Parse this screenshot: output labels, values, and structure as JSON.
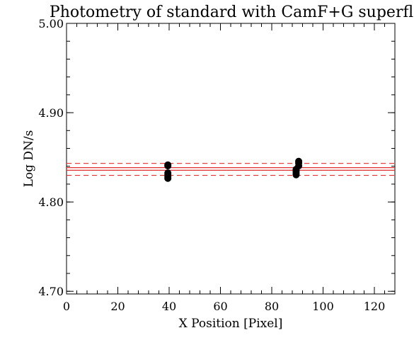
{
  "chart_data": {
    "type": "scatter",
    "title": "Photometry of standard with CamF+G superflat",
    "xlabel": "X Position [Pixel]",
    "ylabel": "Log DN/s",
    "xlim": [
      0,
      128
    ],
    "ylim": [
      4.697,
      5.0
    ],
    "x_ticks": [
      0,
      20,
      40,
      60,
      80,
      100,
      120
    ],
    "x_tick_labels": [
      "0",
      "20",
      "40",
      "60",
      "80",
      "100",
      "120"
    ],
    "x_minor_step": 4,
    "y_ticks": [
      4.7,
      4.8,
      4.9,
      5.0
    ],
    "y_tick_labels": [
      "4.70",
      "4.80",
      "4.90",
      "5.00"
    ],
    "y_minor_step": 0.02,
    "grid": false,
    "points": [
      {
        "x": 39.5,
        "y": 4.8415
      },
      {
        "x": 39.5,
        "y": 4.8405
      },
      {
        "x": 39.5,
        "y": 4.8325
      },
      {
        "x": 39.5,
        "y": 4.8305
      },
      {
        "x": 39.5,
        "y": 4.8285
      },
      {
        "x": 39.5,
        "y": 4.8265
      },
      {
        "x": 89.5,
        "y": 4.8365
      },
      {
        "x": 89.5,
        "y": 4.8345
      },
      {
        "x": 89.5,
        "y": 4.8325
      },
      {
        "x": 89.5,
        "y": 4.8305
      },
      {
        "x": 90.5,
        "y": 4.8455
      },
      {
        "x": 90.5,
        "y": 4.8435
      },
      {
        "x": 90.5,
        "y": 4.8405
      }
    ],
    "reference_lines": [
      {
        "y": 4.8432,
        "style": "dashed",
        "color": "#e03030"
      },
      {
        "y": 4.8385,
        "style": "solid",
        "color": "#e03030"
      },
      {
        "y": 4.8355,
        "style": "solid",
        "color": "#e03030"
      },
      {
        "y": 4.8298,
        "style": "dashed",
        "color": "#e03030"
      }
    ],
    "marker_color": "#000000",
    "axis_color": "#000000"
  }
}
